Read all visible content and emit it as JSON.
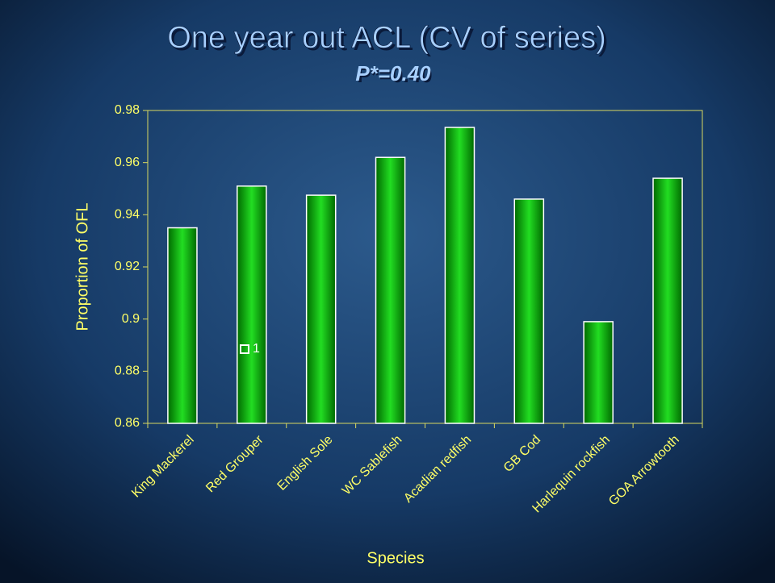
{
  "chart_data": {
    "type": "bar",
    "title": "One year out ACL (CV of series)",
    "subtitle": "P*=0.40",
    "xlabel": "Species",
    "ylabel": "Proportion of OFL",
    "categories": [
      "King Mackerel",
      "Red Grouper",
      "English Sole",
      "WC Sablefish",
      "Acadian redfish",
      "GB Cod",
      "Harlequin rockfish",
      "GOA Arrowtooth"
    ],
    "series": [
      {
        "name": "1",
        "color": "#00b000",
        "values": [
          0.935,
          0.951,
          0.9475,
          0.962,
          0.9735,
          0.946,
          0.899,
          0.954
        ]
      }
    ],
    "ylim": [
      0.86,
      0.98
    ],
    "yticks": [
      0.86,
      0.88,
      0.9,
      0.92,
      0.94,
      0.96,
      0.98
    ],
    "legend": "lower left"
  }
}
